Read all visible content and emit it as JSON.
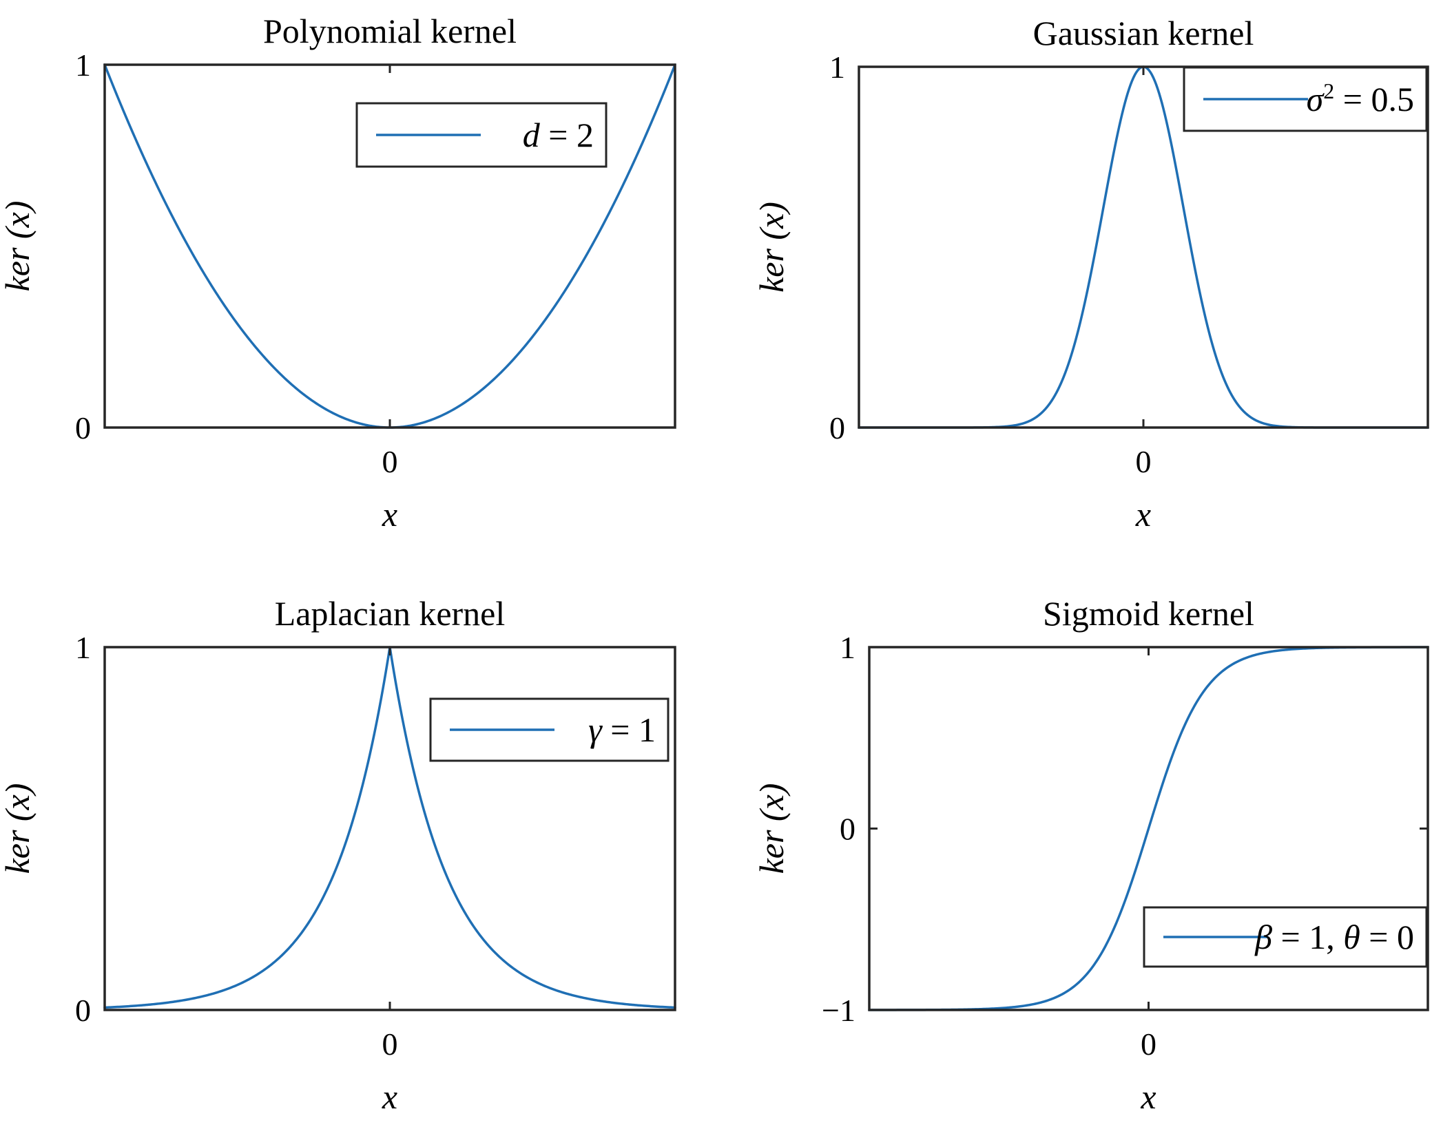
{
  "colors": {
    "line": "#1f6fb4",
    "axis": "#262626"
  },
  "chart_data": [
    {
      "type": "line",
      "title": "Polynomial kernel",
      "xlabel": "x",
      "ylabel": "ker (x)",
      "xlim": [
        -1,
        1
      ],
      "ylim": [
        0,
        1
      ],
      "xticks": [
        0
      ],
      "xtick_labels": [
        "0"
      ],
      "yticks": [
        0,
        1
      ],
      "ytick_labels": [
        "0",
        "1"
      ],
      "legend_position": "top-right",
      "grid": false,
      "series": [
        {
          "legend": {
            "var": "d",
            "rest": " = 2"
          },
          "function": "x^2",
          "x_range": [
            -1,
            1
          ]
        }
      ]
    },
    {
      "type": "line",
      "title": "Gaussian kernel",
      "xlabel": "x",
      "ylabel": "ker (x)",
      "xlim": [
        -5,
        5
      ],
      "ylim": [
        0,
        1
      ],
      "xticks": [
        0
      ],
      "xtick_labels": [
        "0"
      ],
      "yticks": [
        0,
        1
      ],
      "ytick_labels": [
        "0",
        "1"
      ],
      "legend_position": "top-right",
      "grid": false,
      "series": [
        {
          "legend": {
            "var": "σ",
            "sup": "2",
            "rest": " = 0.5"
          },
          "function": "exp(-x^2 / (2*0.5))",
          "x_range": [
            -5,
            5
          ]
        }
      ]
    },
    {
      "type": "line",
      "title": "Laplacian kernel",
      "xlabel": "x",
      "ylabel": "ker (x)",
      "xlim": [
        -5,
        5
      ],
      "ylim": [
        0,
        1
      ],
      "xticks": [
        0
      ],
      "xtick_labels": [
        "0"
      ],
      "yticks": [
        0,
        1
      ],
      "ytick_labels": [
        "0",
        "1"
      ],
      "legend_position": "top-right",
      "grid": false,
      "series": [
        {
          "legend": {
            "var": "γ",
            "rest": " = 1"
          },
          "function": "exp(-|x|)",
          "x_range": [
            -5,
            5
          ]
        }
      ]
    },
    {
      "type": "line",
      "title": "Sigmoid kernel",
      "xlabel": "x",
      "ylabel": "ker (x)",
      "xlim": [
        -5,
        5
      ],
      "ylim": [
        -1,
        1
      ],
      "xticks": [
        0
      ],
      "xtick_labels": [
        "0"
      ],
      "yticks": [
        -1,
        0,
        1
      ],
      "ytick_labels": [
        "−1",
        "0",
        "1"
      ],
      "legend_position": "bottom-right",
      "grid": false,
      "series": [
        {
          "legend": {
            "var": "β",
            "rest": " = 1, ",
            "var2": "θ",
            "rest2": " = 0"
          },
          "function": "tanh(1*x + 0)",
          "x_range": [
            -5,
            5
          ]
        }
      ]
    }
  ]
}
